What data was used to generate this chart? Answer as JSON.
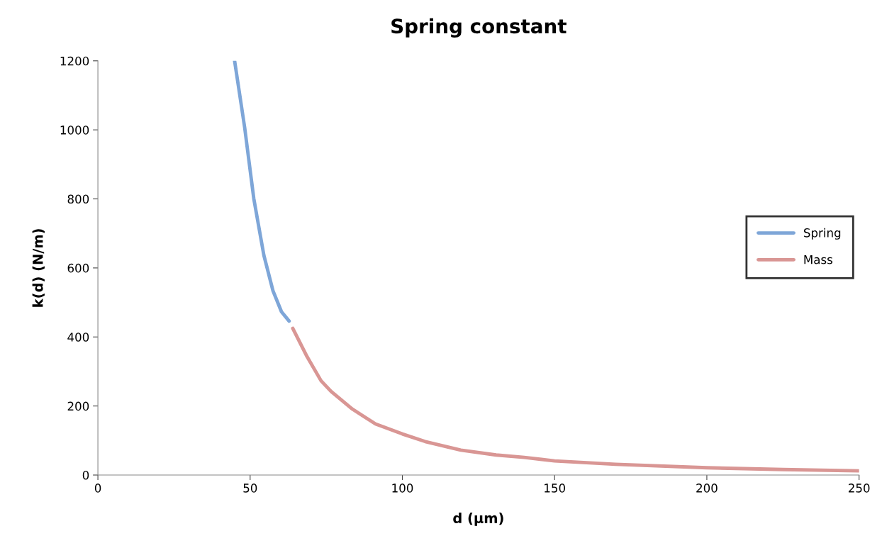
{
  "chart_data": {
    "type": "line",
    "title": "Spring constant",
    "xlabel": "d (µm)",
    "ylabel": "k(d) (N/m)",
    "xlim": [
      0,
      250
    ],
    "ylim": [
      0,
      1200
    ],
    "xticks": [
      0,
      50,
      100,
      150,
      200,
      250
    ],
    "yticks": [
      0,
      200,
      400,
      600,
      800,
      1000,
      1200
    ],
    "grid": false,
    "legend": "right",
    "marker": "none",
    "line_style": "solid",
    "series": [
      {
        "name": "Spring",
        "color": "#7ea6d8",
        "x": [
          44.9,
          48.2,
          51.2,
          54.5,
          57.5,
          60.3,
          62.8
        ],
        "values": [
          1200,
          1007,
          801,
          637,
          534,
          473,
          446
        ]
      },
      {
        "name": "Mass",
        "color": "#d99694",
        "x": [
          64,
          68.7,
          73.3,
          76.6,
          83.6,
          91.2,
          100,
          107.5,
          119.2,
          130.8,
          140,
          150,
          170,
          200,
          225,
          250
        ],
        "values": [
          425,
          343,
          273,
          242,
          191,
          148,
          119,
          97,
          72,
          58,
          51,
          41,
          31,
          21,
          16,
          12
        ]
      }
    ]
  }
}
